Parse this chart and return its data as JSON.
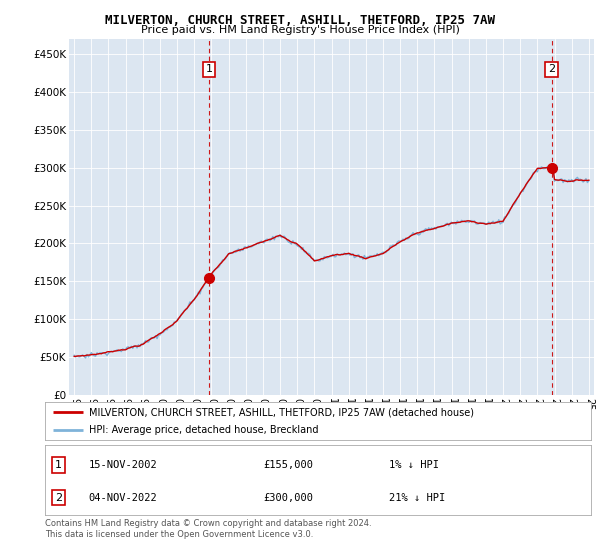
{
  "title": "MILVERTON, CHURCH STREET, ASHILL, THETFORD, IP25 7AW",
  "subtitle": "Price paid vs. HM Land Registry's House Price Index (HPI)",
  "yticks": [
    0,
    50000,
    100000,
    150000,
    200000,
    250000,
    300000,
    350000,
    400000,
    450000
  ],
  "ytick_labels": [
    "£0",
    "£50K",
    "£100K",
    "£150K",
    "£200K",
    "£250K",
    "£300K",
    "£350K",
    "£400K",
    "£450K"
  ],
  "xlim_start": 1994.7,
  "xlim_end": 2025.3,
  "ylim_min": 0,
  "ylim_max": 470000,
  "background_color": "#dce6f1",
  "hpi_line_color": "#7fb3d9",
  "price_line_color": "#cc0000",
  "sale_marker_color": "#cc0000",
  "dashed_line_color": "#cc0000",
  "transaction1_x": 2002.87,
  "transaction1_y": 155000,
  "transaction1_label": "1",
  "transaction2_x": 2022.84,
  "transaction2_y": 300000,
  "transaction2_label": "2",
  "legend_entry1": "MILVERTON, CHURCH STREET, ASHILL, THETFORD, IP25 7AW (detached house)",
  "legend_entry2": "HPI: Average price, detached house, Breckland",
  "table_row1": [
    "1",
    "15-NOV-2002",
    "£155,000",
    "1% ↓ HPI"
  ],
  "table_row2": [
    "2",
    "04-NOV-2022",
    "£300,000",
    "21% ↓ HPI"
  ],
  "footer_text": "Contains HM Land Registry data © Crown copyright and database right 2024.\nThis data is licensed under the Open Government Licence v3.0.",
  "xtick_years": [
    1995,
    1996,
    1997,
    1998,
    1999,
    2000,
    2001,
    2002,
    2003,
    2004,
    2005,
    2006,
    2007,
    2008,
    2009,
    2010,
    2011,
    2012,
    2013,
    2014,
    2015,
    2016,
    2017,
    2018,
    2019,
    2020,
    2021,
    2022,
    2023,
    2024,
    2025
  ]
}
